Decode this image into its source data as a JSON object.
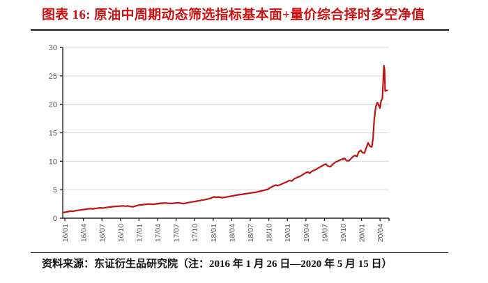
{
  "header": {
    "title": "图表 16: 原油中周期动态筛选指标基本面+量价综合择时多空净值"
  },
  "footer": {
    "source_note": "资料来源：东证衍生品研究院（注：2016 年 1 月 26 日—2020 年 5 月 15 日）"
  },
  "colors": {
    "title_red": "#cc1111",
    "line_red": "#c01010",
    "grid": "#d9d9d9",
    "axis": "#262626",
    "tick_label": "#595959",
    "rule_black": "#151515",
    "background": "#ffffff"
  },
  "chart_data": {
    "type": "line",
    "title": "",
    "xlabel": "",
    "ylabel": "",
    "grid": "horizontal",
    "legend": "none",
    "ylim": [
      0,
      30
    ],
    "y_ticks": [
      0,
      5,
      10,
      15,
      20,
      25,
      30
    ],
    "x_tick_labels": [
      "16/01",
      "16/04",
      "16/07",
      "16/10",
      "17/01",
      "17/04",
      "17/07",
      "17/10",
      "18/01",
      "18/04",
      "18/07",
      "18/10",
      "19/01",
      "19/04",
      "19/07",
      "19/10",
      "20/01",
      "20/04"
    ],
    "x_unit": "months since 2016/01 (data span 2016/01/26 - 2020/05/15)",
    "series": [
      {
        "name": "多空净值",
        "color": "#c01010",
        "points": [
          [
            0,
            1.0
          ],
          [
            0.4,
            1.08
          ],
          [
            0.8,
            1.16
          ],
          [
            1.2,
            1.25
          ],
          [
            1.5,
            1.19
          ],
          [
            2,
            1.32
          ],
          [
            2.4,
            1.4
          ],
          [
            2.8,
            1.45
          ],
          [
            3.2,
            1.52
          ],
          [
            3.6,
            1.58
          ],
          [
            4,
            1.63
          ],
          [
            4.4,
            1.68
          ],
          [
            4.7,
            1.62
          ],
          [
            5.2,
            1.7
          ],
          [
            5.6,
            1.78
          ],
          [
            6,
            1.83
          ],
          [
            6.3,
            1.77
          ],
          [
            6.8,
            1.86
          ],
          [
            7.2,
            1.92
          ],
          [
            7.6,
            1.97
          ],
          [
            8,
            2.02
          ],
          [
            8.4,
            2.06
          ],
          [
            8.8,
            2.1
          ],
          [
            9.2,
            2.13
          ],
          [
            9.6,
            2.17
          ],
          [
            10,
            2.1
          ],
          [
            10.4,
            2.16
          ],
          [
            10.8,
            2.04
          ],
          [
            11.2,
            1.98
          ],
          [
            11.6,
            2.12
          ],
          [
            12,
            2.26
          ],
          [
            12.5,
            2.33
          ],
          [
            13,
            2.4
          ],
          [
            13.5,
            2.46
          ],
          [
            14,
            2.49
          ],
          [
            14.5,
            2.44
          ],
          [
            15,
            2.52
          ],
          [
            15.5,
            2.58
          ],
          [
            16,
            2.63
          ],
          [
            16.5,
            2.67
          ],
          [
            17,
            2.6
          ],
          [
            17.5,
            2.58
          ],
          [
            18,
            2.66
          ],
          [
            18.5,
            2.72
          ],
          [
            19,
            2.62
          ],
          [
            19.3,
            2.55
          ],
          [
            19.7,
            2.63
          ],
          [
            20,
            2.72
          ],
          [
            20.5,
            2.8
          ],
          [
            21,
            2.9
          ],
          [
            21.5,
            3.0
          ],
          [
            22,
            3.1
          ],
          [
            22.5,
            3.2
          ],
          [
            23,
            3.3
          ],
          [
            23.5,
            3.42
          ],
          [
            24,
            3.62
          ],
          [
            24.3,
            3.76
          ],
          [
            24.6,
            3.66
          ],
          [
            25,
            3.73
          ],
          [
            25.5,
            3.6
          ],
          [
            26,
            3.66
          ],
          [
            26.5,
            3.76
          ],
          [
            27,
            3.86
          ],
          [
            27.4,
            3.95
          ],
          [
            27.8,
            4.02
          ],
          [
            28.2,
            4.1
          ],
          [
            28.6,
            4.16
          ],
          [
            29,
            4.22
          ],
          [
            29.4,
            4.3
          ],
          [
            29.8,
            4.36
          ],
          [
            30.2,
            4.45
          ],
          [
            30.6,
            4.5
          ],
          [
            31,
            4.56
          ],
          [
            31.4,
            4.66
          ],
          [
            31.8,
            4.76
          ],
          [
            32.2,
            4.86
          ],
          [
            32.6,
            4.97
          ],
          [
            33,
            5.12
          ],
          [
            33.4,
            5.4
          ],
          [
            33.8,
            5.62
          ],
          [
            34.2,
            5.82
          ],
          [
            34.6,
            5.72
          ],
          [
            35,
            5.92
          ],
          [
            35.5,
            6.15
          ],
          [
            36,
            6.38
          ],
          [
            36.4,
            6.62
          ],
          [
            36.8,
            6.52
          ],
          [
            37.2,
            6.92
          ],
          [
            37.6,
            7.12
          ],
          [
            38,
            7.3
          ],
          [
            38.4,
            7.52
          ],
          [
            38.8,
            7.8
          ],
          [
            39.1,
            8.02
          ],
          [
            39.4,
            8.1
          ],
          [
            39.7,
            7.88
          ],
          [
            40,
            8.2
          ],
          [
            40.4,
            8.42
          ],
          [
            40.8,
            8.62
          ],
          [
            41.2,
            8.9
          ],
          [
            41.6,
            9.12
          ],
          [
            42,
            9.38
          ],
          [
            42.3,
            9.52
          ],
          [
            42.6,
            9.16
          ],
          [
            43,
            9.02
          ],
          [
            43.4,
            9.46
          ],
          [
            43.8,
            9.82
          ],
          [
            44.2,
            10.02
          ],
          [
            44.6,
            10.22
          ],
          [
            45,
            10.38
          ],
          [
            45.3,
            10.52
          ],
          [
            45.6,
            10.12
          ],
          [
            46,
            10.06
          ],
          [
            46.4,
            10.52
          ],
          [
            46.7,
            10.82
          ],
          [
            47,
            11.02
          ],
          [
            47.3,
            10.82
          ],
          [
            47.6,
            11.62
          ],
          [
            47.9,
            11.92
          ],
          [
            48.2,
            11.52
          ],
          [
            48.5,
            11.42
          ],
          [
            48.8,
            12.32
          ],
          [
            49.1,
            13.22
          ],
          [
            49.4,
            12.62
          ],
          [
            49.7,
            12.52
          ],
          [
            49.9,
            14.0
          ],
          [
            50.1,
            17.5
          ],
          [
            50.35,
            19.62
          ],
          [
            50.6,
            20.32
          ],
          [
            50.8,
            19.92
          ],
          [
            51.0,
            19.32
          ],
          [
            51.2,
            20.62
          ],
          [
            51.4,
            21.02
          ],
          [
            51.55,
            24.5
          ],
          [
            51.65,
            26.8
          ],
          [
            51.75,
            26.0
          ],
          [
            51.85,
            22.32
          ],
          [
            52.0,
            22.45
          ],
          [
            52.2,
            22.45
          ]
        ]
      }
    ]
  }
}
